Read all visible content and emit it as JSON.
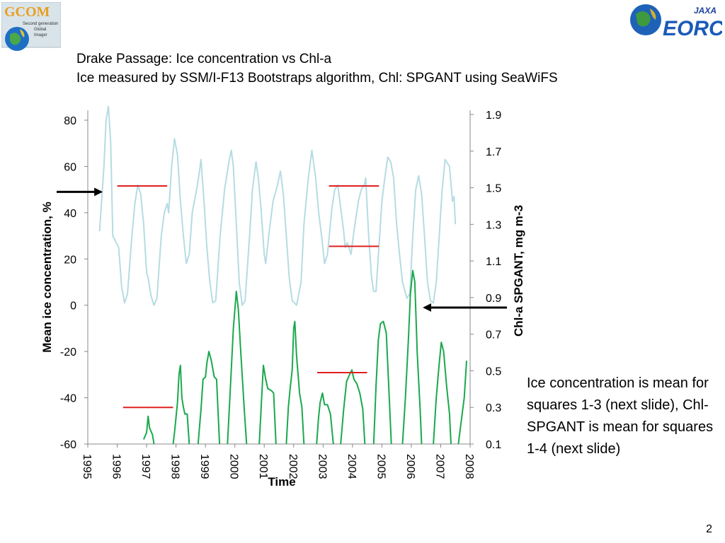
{
  "title": {
    "line1": "Drake Passage: Ice concentration vs Chl-a",
    "line2": "Ice measured by SSM/I-F13 Bootstraps algorithm, Chl: SPGANT using SeaWiFS"
  },
  "logos": {
    "gcom": {
      "text": "GCOM",
      "subtext": [
        "Second generation",
        "Global",
        "Imager"
      ]
    },
    "eorc": {
      "text": "EORC",
      "subtext": "JAXA"
    }
  },
  "note": "Ice concentration is mean for squares 1-3 (next slide), Chl-SPGANT is mean for squares 1-4 (next slide)",
  "page_number": "2",
  "colors": {
    "ice": "#b5dce2",
    "chl": "#1aa84c",
    "mean_lines": "#e02020",
    "arrows": "#000000"
  },
  "chart_data": {
    "type": "line",
    "xlabel": "Time",
    "ylabel_left": "Mean ice concentration, %",
    "ylabel_right": "Chl-a SPGANT, mg m-3",
    "x_ticks": [
      "1995",
      "1996",
      "1997",
      "1998",
      "1999",
      "2000",
      "2001",
      "2002",
      "2003",
      "2004",
      "2005",
      "2006",
      "2007",
      "2008"
    ],
    "xlim": [
      1995,
      2008
    ],
    "ylim_left": [
      -60,
      80
    ],
    "ylim_right": [
      0.1,
      1.9
    ],
    "yticks_left": [
      "-60",
      "-40",
      "-20",
      "0",
      "20",
      "40",
      "60",
      "80"
    ],
    "yticks_right": [
      "0.1",
      "0.3",
      "0.5",
      "0.7",
      "0.9",
      "1.1",
      "1.3",
      "1.5",
      "1.7",
      "1.9"
    ],
    "grid": false,
    "series": [
      {
        "axis": "left",
        "points": [
          [
            1995.4,
            32
          ],
          [
            1995.55,
            60
          ],
          [
            1995.62,
            80
          ],
          [
            1995.7,
            86
          ],
          [
            1995.78,
            70
          ],
          [
            1995.85,
            30
          ],
          [
            1996.05,
            25
          ],
          [
            1996.15,
            8
          ],
          [
            1996.25,
            1
          ],
          [
            1996.35,
            5
          ],
          [
            1996.5,
            30
          ],
          [
            1996.6,
            44
          ],
          [
            1996.7,
            52
          ],
          [
            1996.8,
            48
          ],
          [
            1996.9,
            35
          ],
          [
            1997.0,
            14
          ],
          [
            1997.05,
            12
          ],
          [
            1997.15,
            4
          ],
          [
            1997.25,
            0
          ],
          [
            1997.35,
            3
          ],
          [
            1997.5,
            30
          ],
          [
            1997.6,
            40
          ],
          [
            1997.7,
            44
          ],
          [
            1997.75,
            40
          ],
          [
            1997.85,
            60
          ],
          [
            1997.95,
            72
          ],
          [
            1998.05,
            65
          ],
          [
            1998.15,
            45
          ],
          [
            1998.25,
            30
          ],
          [
            1998.35,
            18
          ],
          [
            1998.45,
            22
          ],
          [
            1998.55,
            40
          ],
          [
            1998.7,
            50
          ],
          [
            1998.8,
            58
          ],
          [
            1998.85,
            63
          ],
          [
            1998.95,
            45
          ],
          [
            1999.05,
            25
          ],
          [
            1999.15,
            10
          ],
          [
            1999.25,
            1
          ],
          [
            1999.35,
            2
          ],
          [
            1999.5,
            30
          ],
          [
            1999.65,
            50
          ],
          [
            1999.8,
            62
          ],
          [
            1999.88,
            67
          ],
          [
            1999.95,
            60
          ],
          [
            2000.05,
            35
          ],
          [
            2000.15,
            10
          ],
          [
            2000.25,
            0
          ],
          [
            2000.35,
            2
          ],
          [
            2000.5,
            30
          ],
          [
            2000.6,
            50
          ],
          [
            2000.72,
            62
          ],
          [
            2000.8,
            55
          ],
          [
            2000.9,
            40
          ],
          [
            2001.0,
            22
          ],
          [
            2001.05,
            18
          ],
          [
            2001.15,
            30
          ],
          [
            2001.3,
            45
          ],
          [
            2001.45,
            52
          ],
          [
            2001.55,
            58
          ],
          [
            2001.65,
            48
          ],
          [
            2001.75,
            30
          ],
          [
            2001.85,
            12
          ],
          [
            2001.95,
            2
          ],
          [
            2002.1,
            0
          ],
          [
            2002.25,
            10
          ],
          [
            2002.35,
            35
          ],
          [
            2002.5,
            55
          ],
          [
            2002.62,
            67
          ],
          [
            2002.75,
            55
          ],
          [
            2002.85,
            40
          ],
          [
            2002.95,
            30
          ],
          [
            2003.05,
            18
          ],
          [
            2003.15,
            22
          ],
          [
            2003.3,
            42
          ],
          [
            2003.4,
            50
          ],
          [
            2003.5,
            52
          ],
          [
            2003.6,
            42
          ],
          [
            2003.7,
            32
          ],
          [
            2003.75,
            25
          ],
          [
            2003.82,
            27
          ],
          [
            2003.88,
            25
          ],
          [
            2003.95,
            22
          ],
          [
            2004.05,
            32
          ],
          [
            2004.2,
            45
          ],
          [
            2004.3,
            50
          ],
          [
            2004.4,
            52
          ],
          [
            2004.45,
            55
          ],
          [
            2004.55,
            30
          ],
          [
            2004.65,
            12
          ],
          [
            2004.72,
            6
          ],
          [
            2004.8,
            6
          ],
          [
            2004.9,
            25
          ],
          [
            2005.0,
            45
          ],
          [
            2005.1,
            55
          ],
          [
            2005.2,
            64
          ],
          [
            2005.3,
            62
          ],
          [
            2005.4,
            55
          ],
          [
            2005.5,
            35
          ],
          [
            2005.6,
            22
          ],
          [
            2005.7,
            10
          ],
          [
            2005.85,
            3
          ],
          [
            2005.95,
            5
          ],
          [
            2006.05,
            30
          ],
          [
            2006.15,
            50
          ],
          [
            2006.25,
            56
          ],
          [
            2006.35,
            48
          ],
          [
            2006.45,
            30
          ],
          [
            2006.55,
            10
          ],
          [
            2006.65,
            2
          ],
          [
            2006.75,
            1
          ],
          [
            2006.85,
            10
          ],
          [
            2006.95,
            30
          ],
          [
            2007.05,
            50
          ],
          [
            2007.15,
            63
          ],
          [
            2007.3,
            60
          ],
          [
            2007.4,
            45
          ],
          [
            2007.45,
            47
          ],
          [
            2007.5,
            35
          ]
        ]
      },
      {
        "axis": "left",
        "points": [
          [
            1996.9,
            -58
          ],
          [
            1997.0,
            -55
          ],
          [
            1997.05,
            -48
          ],
          [
            1997.1,
            -53
          ],
          [
            1997.2,
            -56
          ],
          [
            1997.25,
            -60
          ]
        ]
      },
      {
        "axis": "left",
        "points": [
          [
            1997.9,
            -60
          ],
          [
            1997.95,
            -55
          ],
          [
            1998.05,
            -42
          ],
          [
            1998.1,
            -30
          ],
          [
            1998.15,
            -26
          ],
          [
            1998.2,
            -40
          ],
          [
            1998.25,
            -44
          ],
          [
            1998.3,
            -47
          ],
          [
            1998.38,
            -47
          ],
          [
            1998.45,
            -60
          ]
        ]
      },
      {
        "axis": "left",
        "points": [
          [
            1998.75,
            -60
          ],
          [
            1998.85,
            -45
          ],
          [
            1998.92,
            -32
          ],
          [
            1999.0,
            -31
          ],
          [
            1999.05,
            -25
          ],
          [
            1999.12,
            -20
          ],
          [
            1999.2,
            -24
          ],
          [
            1999.3,
            -31
          ],
          [
            1999.38,
            -32
          ],
          [
            1999.48,
            -60
          ]
        ]
      },
      {
        "axis": "left",
        "points": [
          [
            1999.75,
            -60
          ],
          [
            1999.85,
            -35
          ],
          [
            1999.95,
            -10
          ],
          [
            2000.05,
            6
          ],
          [
            2000.12,
            -2
          ],
          [
            2000.2,
            -20
          ],
          [
            2000.32,
            -45
          ],
          [
            2000.4,
            -60
          ]
        ]
      },
      {
        "axis": "left",
        "points": [
          [
            2000.83,
            -60
          ],
          [
            2000.92,
            -38
          ],
          [
            2000.97,
            -26
          ],
          [
            2001.05,
            -32
          ],
          [
            2001.12,
            -36
          ],
          [
            2001.25,
            -37
          ],
          [
            2001.32,
            -38
          ],
          [
            2001.4,
            -60
          ]
        ]
      },
      {
        "axis": "left",
        "points": [
          [
            2001.75,
            -60
          ],
          [
            2001.82,
            -44
          ],
          [
            2001.88,
            -36
          ],
          [
            2001.95,
            -28
          ],
          [
            2002.0,
            -10
          ],
          [
            2002.04,
            -7
          ],
          [
            2002.1,
            -22
          ],
          [
            2002.2,
            -38
          ],
          [
            2002.28,
            -44
          ],
          [
            2002.35,
            -60
          ]
        ]
      },
      {
        "axis": "left",
        "points": [
          [
            2002.78,
            -60
          ],
          [
            2002.85,
            -48
          ],
          [
            2002.9,
            -42
          ],
          [
            2002.98,
            -38
          ],
          [
            2003.05,
            -43
          ],
          [
            2003.15,
            -43
          ],
          [
            2003.25,
            -47
          ],
          [
            2003.35,
            -60
          ]
        ]
      },
      {
        "axis": "left",
        "points": [
          [
            2003.6,
            -60
          ],
          [
            2003.7,
            -45
          ],
          [
            2003.8,
            -33
          ],
          [
            2003.9,
            -30
          ],
          [
            2003.98,
            -28
          ],
          [
            2004.05,
            -32
          ],
          [
            2004.15,
            -34
          ],
          [
            2004.25,
            -38
          ],
          [
            2004.35,
            -45
          ],
          [
            2004.42,
            -60
          ]
        ]
      },
      {
        "axis": "left",
        "points": [
          [
            2004.72,
            -60
          ],
          [
            2004.8,
            -35
          ],
          [
            2004.88,
            -15
          ],
          [
            2004.95,
            -8
          ],
          [
            2005.05,
            -7
          ],
          [
            2005.15,
            -12
          ],
          [
            2005.25,
            -40
          ],
          [
            2005.32,
            -60
          ]
        ]
      },
      {
        "axis": "left",
        "points": [
          [
            2005.7,
            -60
          ],
          [
            2005.8,
            -40
          ],
          [
            2005.9,
            -15
          ],
          [
            2005.97,
            5
          ],
          [
            2006.05,
            15
          ],
          [
            2006.12,
            10
          ],
          [
            2006.2,
            -20
          ],
          [
            2006.3,
            -45
          ],
          [
            2006.35,
            -60
          ]
        ]
      },
      {
        "axis": "left",
        "points": [
          [
            2006.75,
            -60
          ],
          [
            2006.85,
            -40
          ],
          [
            2006.95,
            -25
          ],
          [
            2007.02,
            -16
          ],
          [
            2007.1,
            -20
          ],
          [
            2007.2,
            -35
          ],
          [
            2007.3,
            -47
          ],
          [
            2007.35,
            -60
          ]
        ]
      },
      {
        "axis": "left",
        "points": [
          [
            2007.6,
            -60
          ],
          [
            2007.68,
            -52
          ],
          [
            2007.75,
            -45
          ],
          [
            2007.8,
            -40
          ],
          [
            2007.88,
            -24
          ]
        ]
      }
    ],
    "mean_lines": [
      {
        "axis": "right",
        "x": [
          1996.0,
          1997.7
        ],
        "y": 1.51
      },
      {
        "axis": "right",
        "x": [
          2003.2,
          2004.9
        ],
        "y": 1.51
      },
      {
        "axis": "right",
        "x": [
          2003.2,
          2004.9
        ],
        "y": 1.18
      },
      {
        "axis": "right",
        "x": [
          1996.2,
          1997.9
        ],
        "y": 0.3
      },
      {
        "axis": "right",
        "x": [
          2002.8,
          2004.5
        ],
        "y": 0.49
      }
    ],
    "arrows": [
      {
        "points_to": "left axis",
        "x": 1995.5,
        "y_left": 49
      },
      {
        "points_to": "right axis",
        "x": 2006.4,
        "y_left": -1
      }
    ]
  }
}
